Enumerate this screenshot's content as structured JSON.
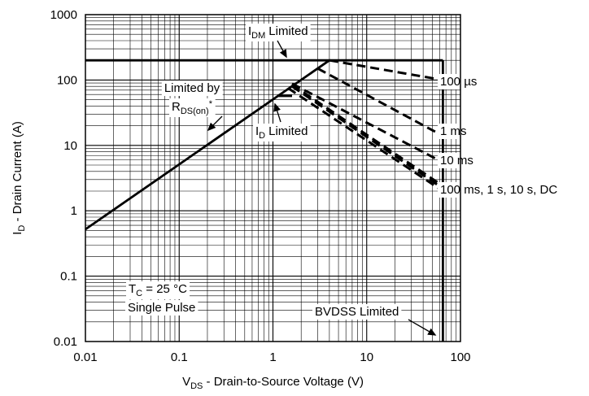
{
  "chart_data": {
    "type": "line",
    "title": "",
    "xlabel": {
      "main": "V",
      "sub": "DS",
      "rest": " - Drain-to-Source Voltage (V)"
    },
    "ylabel": {
      "main": "I",
      "sub": "D",
      "rest": " - Drain Current (A)"
    },
    "x_scale": "log",
    "y_scale": "log",
    "xlim": [
      0.01,
      100
    ],
    "ylim": [
      0.01,
      1000
    ],
    "grid": true,
    "x_ticks": [
      {
        "value": 0.01,
        "label": "0.01"
      },
      {
        "value": 0.1,
        "label": "0.1"
      },
      {
        "value": 1,
        "label": "1"
      },
      {
        "value": 10,
        "label": "10"
      },
      {
        "value": 100,
        "label": "100"
      }
    ],
    "y_ticks": [
      {
        "value": 0.01,
        "label": "0.01"
      },
      {
        "value": 0.1,
        "label": "0.1"
      },
      {
        "value": 1,
        "label": "1"
      },
      {
        "value": 10,
        "label": "10"
      },
      {
        "value": 100,
        "label": "100"
      },
      {
        "value": 1000,
        "label": "1000"
      }
    ],
    "series": [
      {
        "id": "idm-limit",
        "style": "solid",
        "points": [
          [
            0.01,
            200
          ],
          [
            65,
            200
          ]
        ]
      },
      {
        "id": "rdson-limit",
        "style": "solid",
        "points": [
          [
            0.01,
            0.52
          ],
          [
            4,
            200
          ]
        ]
      },
      {
        "id": "bvdss-limit",
        "style": "solid",
        "points": [
          [
            65,
            200
          ],
          [
            65,
            0.01
          ]
        ]
      },
      {
        "id": "id-limit",
        "style": "solid",
        "points": [
          [
            1.15,
            57
          ],
          [
            1.6,
            57
          ]
        ]
      },
      {
        "id": "pulse-100us",
        "style": "dashed",
        "points": [
          [
            4,
            200
          ],
          [
            65,
            100
          ]
        ]
      },
      {
        "id": "pulse-1ms",
        "style": "dashed",
        "points": [
          [
            3.0,
            150
          ],
          [
            65,
            14
          ]
        ]
      },
      {
        "id": "pulse-10ms",
        "style": "dashed",
        "points": [
          [
            1.6,
            88
          ],
          [
            65,
            5.5
          ]
        ]
      },
      {
        "id": "pulse-dc-a",
        "style": "dashed",
        "points": [
          [
            1.6,
            85
          ],
          [
            65,
            2.4
          ]
        ]
      },
      {
        "id": "pulse-dc-b",
        "style": "dashed",
        "points": [
          [
            1.6,
            80
          ],
          [
            65,
            2.2
          ]
        ]
      },
      {
        "id": "pulse-dc-c",
        "style": "dashed",
        "points": [
          [
            1.45,
            75
          ],
          [
            65,
            2.0
          ]
        ]
      }
    ],
    "annotations": [
      {
        "id": "idm-limited",
        "text": "Limited",
        "main": "I",
        "sub": "DM"
      },
      {
        "id": "limited-by",
        "text": "Limited by"
      },
      {
        "id": "rds-on",
        "main": "R",
        "sub": "DS(on)",
        "rest": "*"
      },
      {
        "id": "id-limited",
        "text": "Limited",
        "main": "I",
        "sub": "D"
      },
      {
        "id": "tc",
        "main": "T",
        "sub": "C",
        "rest": " = 25 °C"
      },
      {
        "id": "single-pulse",
        "text": "Single Pulse"
      },
      {
        "id": "bvdss",
        "text": "BVDSS Limited"
      },
      {
        "id": "lbl-100us",
        "text": "100 µs"
      },
      {
        "id": "lbl-1ms",
        "text": "1 ms"
      },
      {
        "id": "lbl-10ms",
        "text": "10 ms"
      },
      {
        "id": "lbl-dc",
        "text": "100 ms, 1 s, 10 s, DC"
      }
    ]
  }
}
